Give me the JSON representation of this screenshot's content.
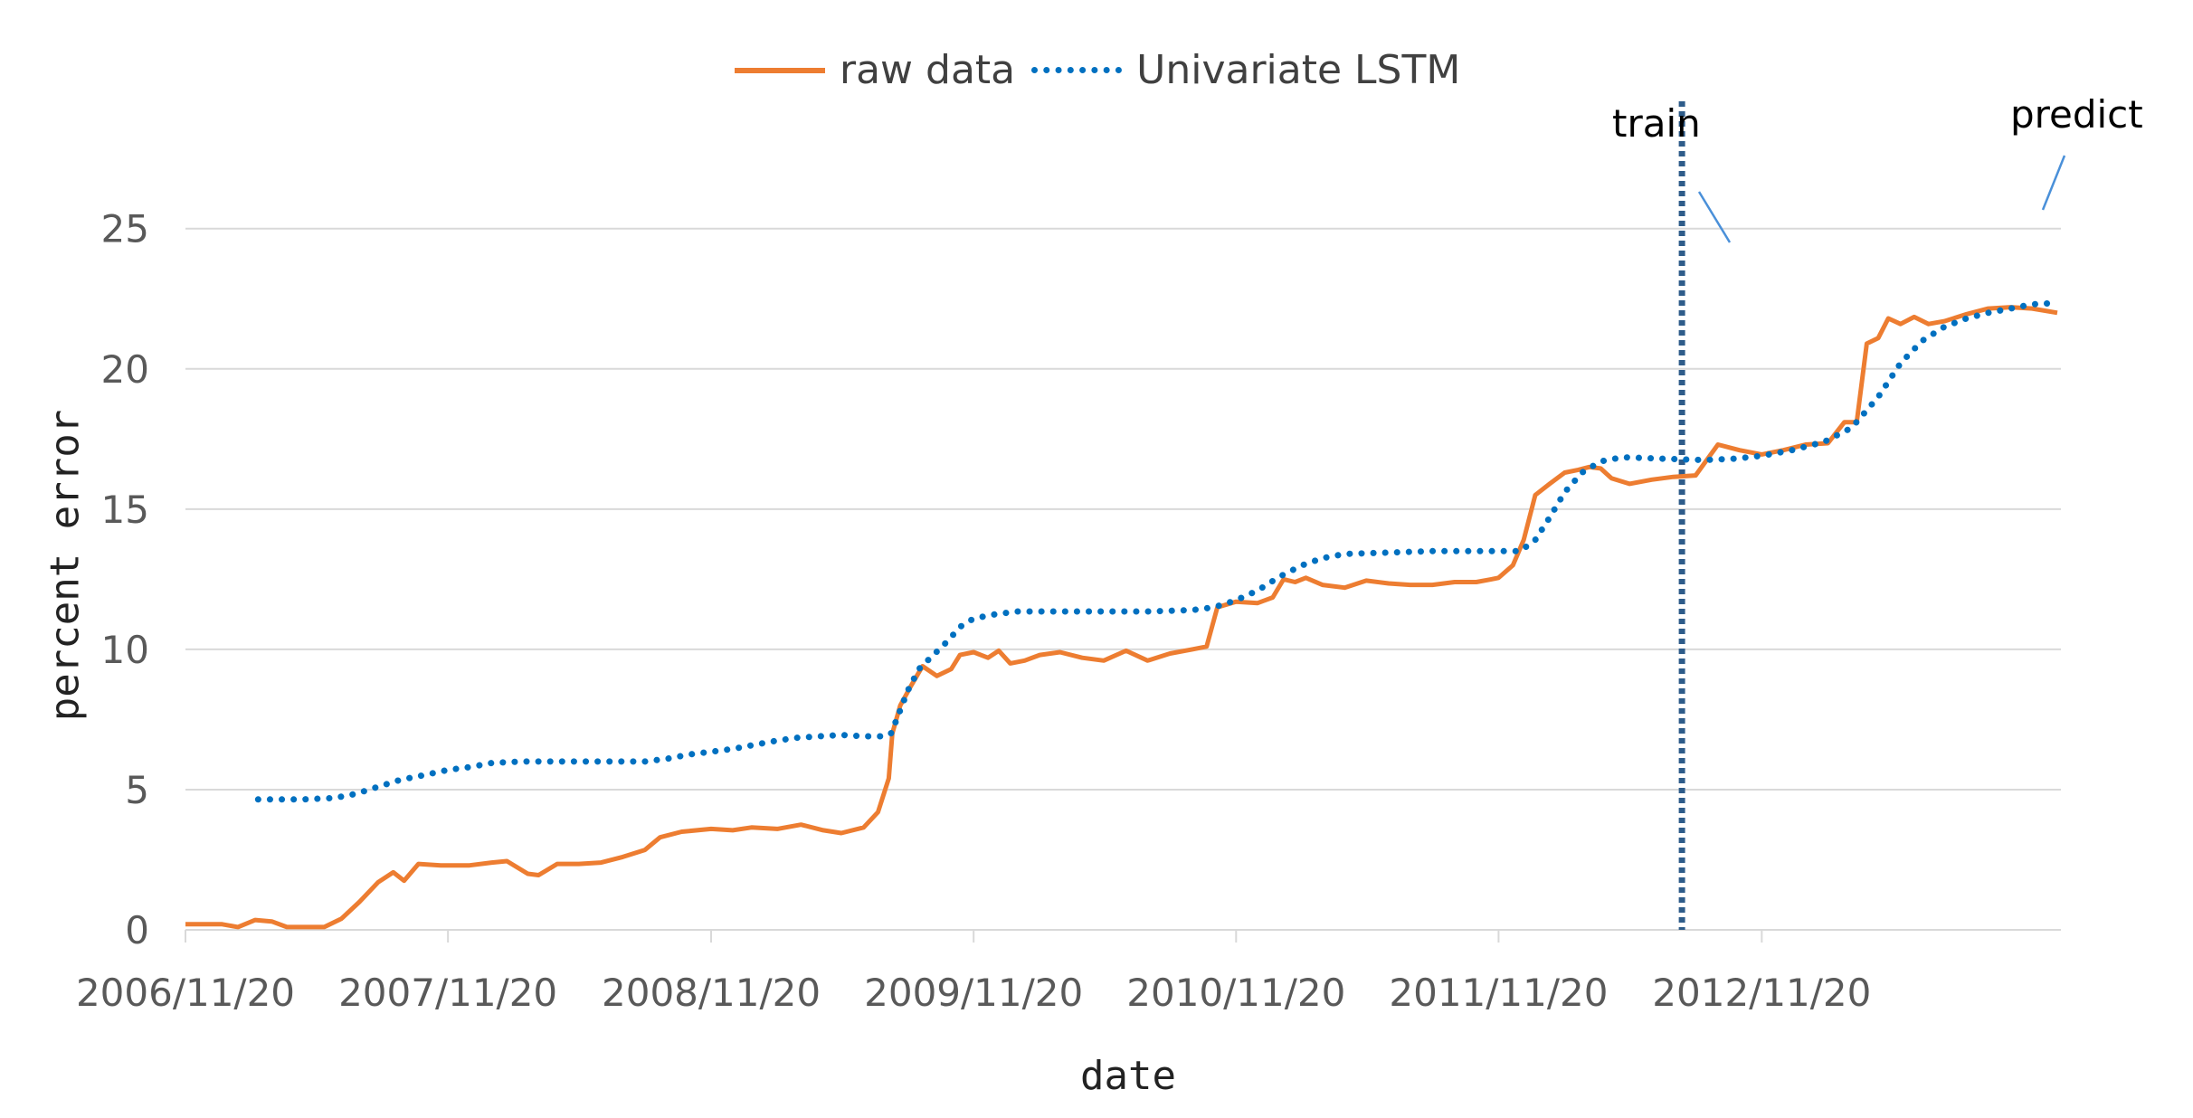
{
  "chart_data": {
    "type": "line",
    "title": "",
    "xlabel": "date",
    "ylabel": "percent error",
    "ylim": [
      0,
      25
    ],
    "yticks": [
      0,
      5,
      10,
      15,
      20,
      25
    ],
    "xticks": [
      "2006/11/20",
      "2007/11/20",
      "2008/11/20",
      "2009/11/20",
      "2010/11/20",
      "2011/11/20",
      "2012/11/20"
    ],
    "grid": true,
    "legend_position": "top",
    "annotations": [
      {
        "text": "train"
      },
      {
        "text": "predict"
      }
    ],
    "split_date": "2012/08/01",
    "series": [
      {
        "name": "raw data",
        "color": "#ED7D31",
        "style": "solid",
        "points": [
          [
            "2006/11/20",
            0.2
          ],
          [
            "2007/01/10",
            0.2
          ],
          [
            "2007/02/01",
            0.1
          ],
          [
            "2007/02/25",
            0.35
          ],
          [
            "2007/03/20",
            0.3
          ],
          [
            "2007/04/10",
            0.1
          ],
          [
            "2007/05/10",
            0.1
          ],
          [
            "2007/06/01",
            0.1
          ],
          [
            "2007/06/25",
            0.4
          ],
          [
            "2007/07/20",
            1.0
          ],
          [
            "2007/08/15",
            1.7
          ],
          [
            "2007/09/05",
            2.05
          ],
          [
            "2007/09/20",
            1.75
          ],
          [
            "2007/10/10",
            2.35
          ],
          [
            "2007/11/10",
            2.3
          ],
          [
            "2007/12/20",
            2.3
          ],
          [
            "2008/01/20",
            2.4
          ],
          [
            "2008/02/10",
            2.45
          ],
          [
            "2008/03/10",
            2.0
          ],
          [
            "2008/03/25",
            1.95
          ],
          [
            "2008/04/20",
            2.35
          ],
          [
            "2008/05/20",
            2.35
          ],
          [
            "2008/06/20",
            2.4
          ],
          [
            "2008/07/20",
            2.6
          ],
          [
            "2008/08/20",
            2.85
          ],
          [
            "2008/09/10",
            3.3
          ],
          [
            "2008/10/10",
            3.5
          ],
          [
            "2008/11/20",
            3.6
          ],
          [
            "2008/12/20",
            3.55
          ],
          [
            "2009/01/15",
            3.65
          ],
          [
            "2009/02/20",
            3.6
          ],
          [
            "2009/03/25",
            3.75
          ],
          [
            "2009/04/25",
            3.55
          ],
          [
            "2009/05/20",
            3.45
          ],
          [
            "2009/06/20",
            3.65
          ],
          [
            "2009/07/10",
            4.2
          ],
          [
            "2009/07/25",
            5.4
          ],
          [
            "2009/07/30",
            7.0
          ],
          [
            "2009/08/10",
            8.0
          ],
          [
            "2009/08/25",
            8.7
          ],
          [
            "2009/09/10",
            9.4
          ],
          [
            "2009/09/30",
            9.05
          ],
          [
            "2009/10/20",
            9.3
          ],
          [
            "2009/11/01",
            9.8
          ],
          [
            "2009/11/20",
            9.9
          ],
          [
            "2009/12/10",
            9.7
          ],
          [
            "2009/12/25",
            9.95
          ],
          [
            "2010/01/10",
            9.5
          ],
          [
            "2010/01/30",
            9.6
          ],
          [
            "2010/02/20",
            9.8
          ],
          [
            "2010/03/20",
            9.9
          ],
          [
            "2010/04/20",
            9.7
          ],
          [
            "2010/05/20",
            9.6
          ],
          [
            "2010/06/20",
            9.95
          ],
          [
            "2010/07/20",
            9.6
          ],
          [
            "2010/08/20",
            9.85
          ],
          [
            "2010/09/20",
            10.0
          ],
          [
            "2010/10/10",
            10.1
          ],
          [
            "2010/10/25",
            11.5
          ],
          [
            "2010/11/20",
            11.7
          ],
          [
            "2010/12/20",
            11.65
          ],
          [
            "2011/01/10",
            11.85
          ],
          [
            "2011/01/25",
            12.5
          ],
          [
            "2011/02/10",
            12.4
          ],
          [
            "2011/02/25",
            12.55
          ],
          [
            "2011/03/20",
            12.3
          ],
          [
            "2011/04/20",
            12.2
          ],
          [
            "2011/05/20",
            12.45
          ],
          [
            "2011/06/20",
            12.35
          ],
          [
            "2011/07/20",
            12.3
          ],
          [
            "2011/08/20",
            12.3
          ],
          [
            "2011/09/20",
            12.4
          ],
          [
            "2011/10/20",
            12.4
          ],
          [
            "2011/11/10",
            12.5
          ],
          [
            "2011/11/20",
            12.55
          ],
          [
            "2011/12/10",
            13.0
          ],
          [
            "2011/12/25",
            13.9
          ],
          [
            "2012/01/10",
            15.5
          ],
          [
            "2012/01/30",
            15.9
          ],
          [
            "2012/02/20",
            16.3
          ],
          [
            "2012/03/10",
            16.4
          ],
          [
            "2012/03/25",
            16.5
          ],
          [
            "2012/04/10",
            16.45
          ],
          [
            "2012/04/25",
            16.1
          ],
          [
            "2012/05/20",
            15.9
          ],
          [
            "2012/06/20",
            16.05
          ],
          [
            "2012/07/20",
            16.15
          ],
          [
            "2012/08/20",
            16.2
          ],
          [
            "2012/09/20",
            17.3
          ],
          [
            "2012/10/20",
            17.1
          ],
          [
            "2012/11/20",
            16.95
          ],
          [
            "2012/12/20",
            17.1
          ],
          [
            "2013/01/20",
            17.3
          ],
          [
            "2013/02/20",
            17.35
          ],
          [
            "2013/03/15",
            18.1
          ],
          [
            "2013/04/01",
            18.1
          ],
          [
            "2013/04/15",
            20.9
          ],
          [
            "2013/05/01",
            21.1
          ],
          [
            "2013/05/15",
            21.8
          ],
          [
            "2013/06/01",
            21.6
          ],
          [
            "2013/06/20",
            21.85
          ],
          [
            "2013/07/10",
            21.6
          ],
          [
            "2013/08/01",
            21.7
          ],
          [
            "2013/09/01",
            21.95
          ],
          [
            "2013/10/01",
            22.15
          ],
          [
            "2013/11/01",
            22.2
          ],
          [
            "2013/12/01",
            22.15
          ],
          [
            "2014/01/05",
            22.0
          ]
        ]
      },
      {
        "name": "Univariate LSTM",
        "color": "#0070C0",
        "style": "dotted",
        "points": [
          [
            "2007/03/01",
            4.65
          ],
          [
            "2007/05/01",
            4.65
          ],
          [
            "2007/06/15",
            4.7
          ],
          [
            "2007/07/15",
            4.85
          ],
          [
            "2007/08/15",
            5.1
          ],
          [
            "2007/09/15",
            5.35
          ],
          [
            "2007/10/15",
            5.5
          ],
          [
            "2007/11/20",
            5.7
          ],
          [
            "2007/12/20",
            5.8
          ],
          [
            "2008/01/20",
            5.95
          ],
          [
            "2008/03/01",
            6.0
          ],
          [
            "2008/05/01",
            6.0
          ],
          [
            "2008/07/01",
            6.0
          ],
          [
            "2008/08/20",
            6.0
          ],
          [
            "2008/09/20",
            6.1
          ],
          [
            "2008/10/20",
            6.25
          ],
          [
            "2008/11/20",
            6.35
          ],
          [
            "2008/12/20",
            6.45
          ],
          [
            "2009/01/20",
            6.6
          ],
          [
            "2009/02/20",
            6.75
          ],
          [
            "2009/03/20",
            6.85
          ],
          [
            "2009/04/20",
            6.9
          ],
          [
            "2009/05/20",
            6.95
          ],
          [
            "2009/06/20",
            6.9
          ],
          [
            "2009/07/20",
            6.9
          ],
          [
            "2009/07/28",
            7.0
          ],
          [
            "2009/08/05",
            7.5
          ],
          [
            "2009/08/20",
            8.5
          ],
          [
            "2009/09/05",
            9.3
          ],
          [
            "2009/09/25",
            9.8
          ],
          [
            "2009/10/15",
            10.3
          ],
          [
            "2009/11/01",
            10.8
          ],
          [
            "2009/11/20",
            11.1
          ],
          [
            "2009/12/20",
            11.25
          ],
          [
            "2010/01/20",
            11.35
          ],
          [
            "2010/03/20",
            11.35
          ],
          [
            "2010/05/20",
            11.35
          ],
          [
            "2010/07/20",
            11.35
          ],
          [
            "2010/09/20",
            11.4
          ],
          [
            "2010/10/20",
            11.5
          ],
          [
            "2010/11/20",
            11.75
          ],
          [
            "2010/12/20",
            12.1
          ],
          [
            "2011/01/20",
            12.6
          ],
          [
            "2011/02/20",
            13.0
          ],
          [
            "2011/03/20",
            13.25
          ],
          [
            "2011/04/20",
            13.4
          ],
          [
            "2011/06/20",
            13.45
          ],
          [
            "2011/08/20",
            13.5
          ],
          [
            "2011/10/20",
            13.5
          ],
          [
            "2011/12/20",
            13.5
          ],
          [
            "2012/01/10",
            13.9
          ],
          [
            "2012/01/30",
            14.7
          ],
          [
            "2012/02/20",
            15.6
          ],
          [
            "2012/03/15",
            16.3
          ],
          [
            "2012/04/10",
            16.7
          ],
          [
            "2012/05/10",
            16.85
          ],
          [
            "2012/07/01",
            16.8
          ],
          [
            "2012/09/01",
            16.75
          ],
          [
            "2012/10/15",
            16.8
          ],
          [
            "2012/11/20",
            16.9
          ],
          [
            "2013/01/01",
            17.1
          ],
          [
            "2013/02/15",
            17.4
          ],
          [
            "2013/03/25",
            17.9
          ],
          [
            "2013/05/01",
            19.0
          ],
          [
            "2013/06/01",
            20.2
          ],
          [
            "2013/07/01",
            21.0
          ],
          [
            "2013/08/01",
            21.5
          ],
          [
            "2013/09/01",
            21.8
          ],
          [
            "2013/10/01",
            22.0
          ],
          [
            "2013/11/01",
            22.15
          ],
          [
            "2013/12/01",
            22.3
          ],
          [
            "2014/01/05",
            22.35
          ]
        ]
      }
    ]
  }
}
